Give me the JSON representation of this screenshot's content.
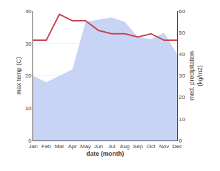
{
  "chart_data": {
    "type": "line",
    "categories": [
      "Jan",
      "Feb",
      "Mar",
      "Apr",
      "May",
      "Jun",
      "Jul",
      "Aug",
      "Sep",
      "Oct",
      "Nov",
      "Dec"
    ],
    "xlabel": "date (month)",
    "ylabel": "max temp (C)",
    "y2label": "med. precipitation\n(kg/m2)",
    "ylim": [
      0,
      40
    ],
    "yticks": [
      0,
      10,
      20,
      30,
      40
    ],
    "y2lim": [
      0,
      60
    ],
    "y2ticks": [
      0,
      10,
      20,
      30,
      40,
      50,
      60
    ],
    "grid": true,
    "series": [
      {
        "type": "area",
        "axis": "y2",
        "color": "#c8d4f5",
        "values": [
          30,
          27,
          30,
          33,
          55,
          56,
          57,
          55,
          48,
          47,
          50,
          40
        ]
      },
      {
        "type": "line",
        "color": "#c8404a",
        "values": [
          31,
          31,
          39,
          37,
          37,
          34,
          33,
          33,
          32,
          33,
          31,
          31
        ]
      }
    ]
  }
}
